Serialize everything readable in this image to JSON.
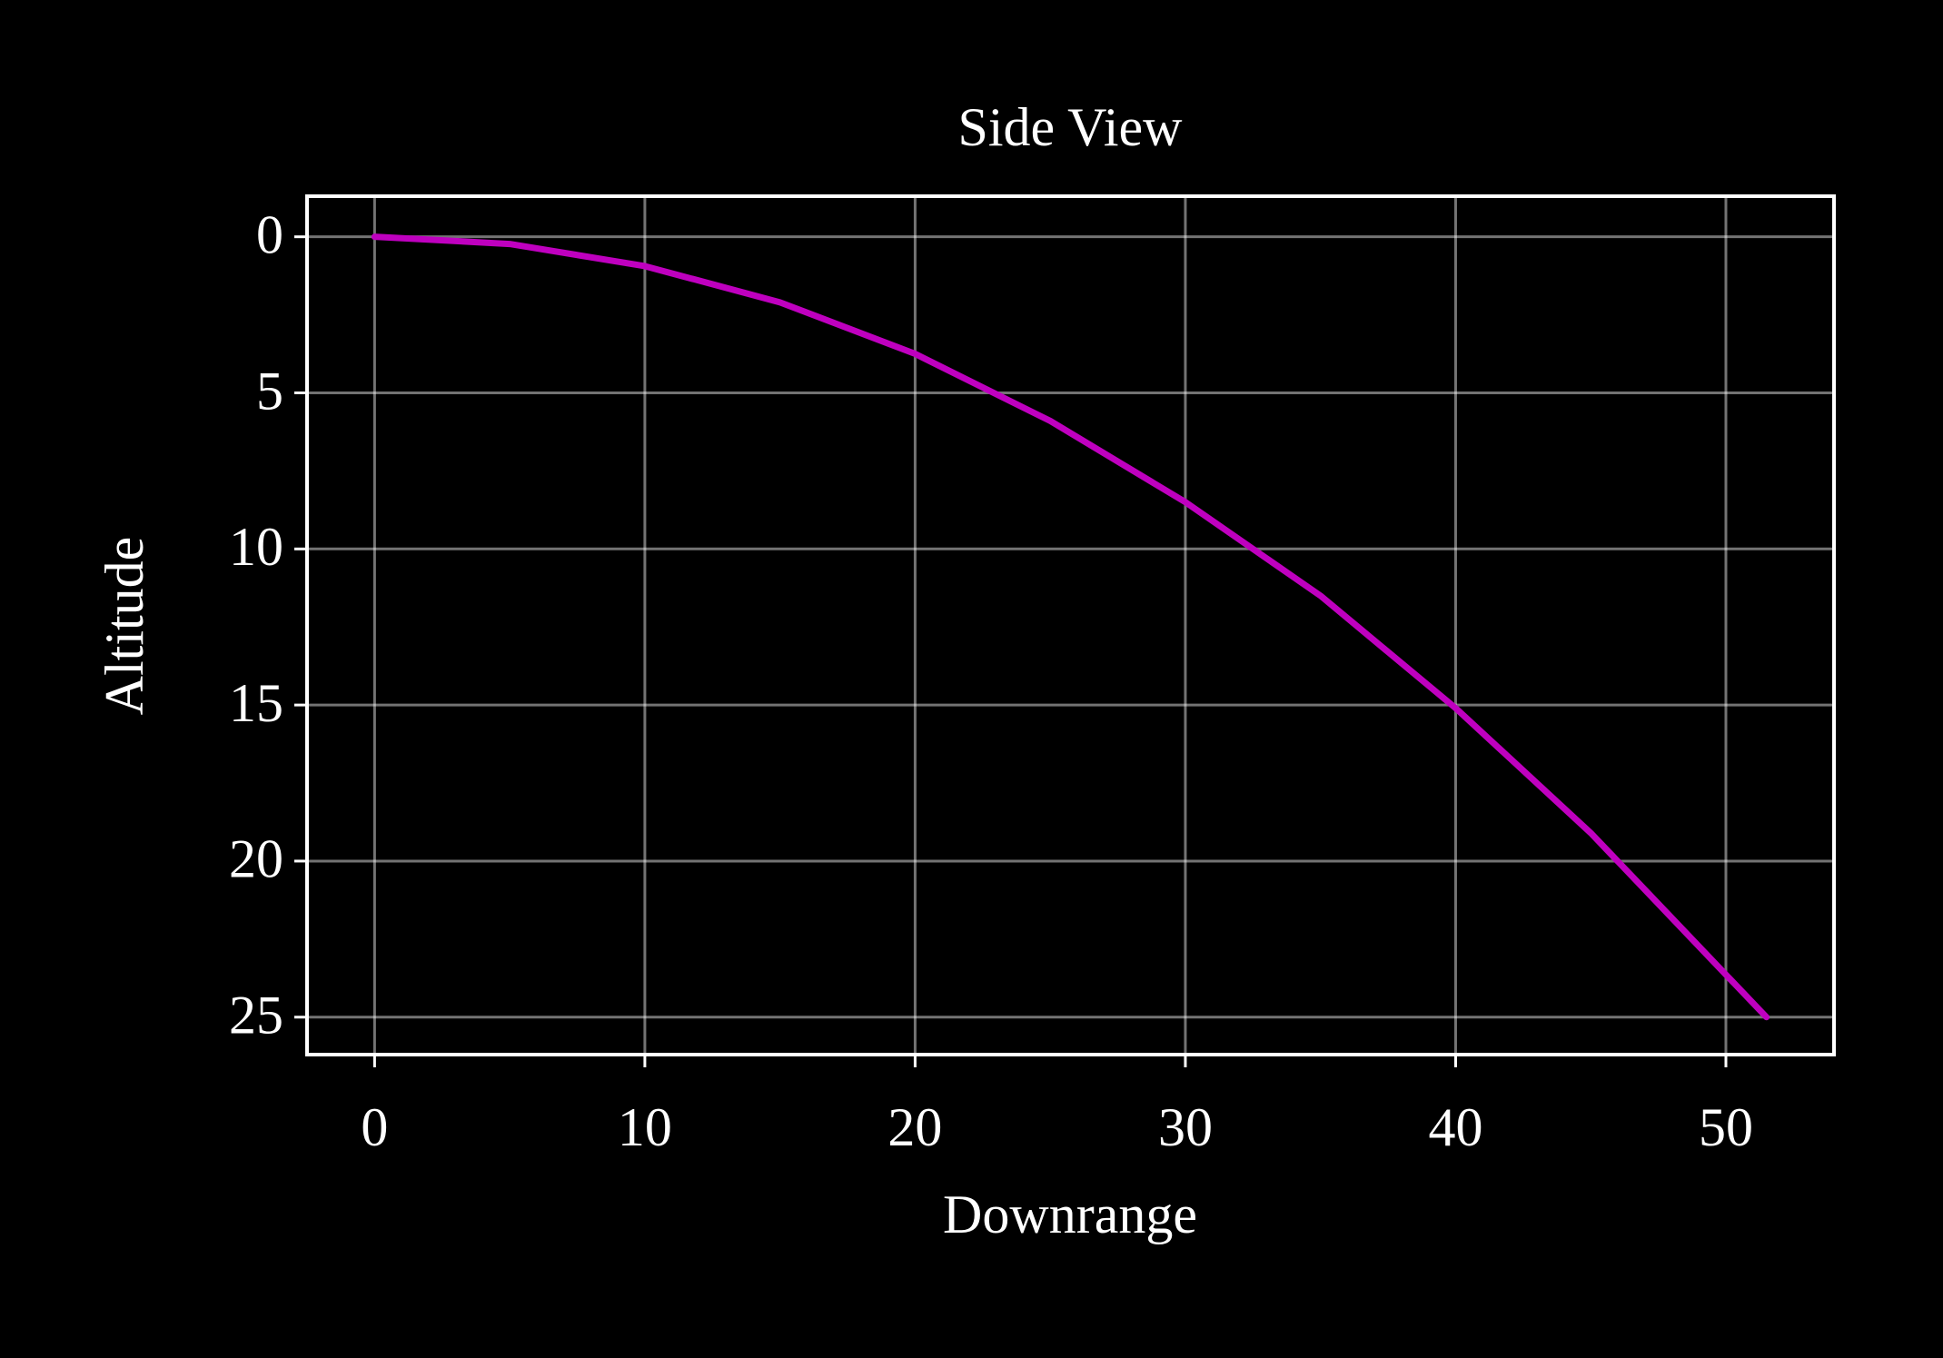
{
  "chart_data": {
    "type": "line",
    "title": "Side View",
    "x_label": "Downrange",
    "y_label": "Altitude",
    "x": [
      0,
      5,
      10,
      15,
      20,
      25,
      30,
      35,
      40,
      45,
      51.5
    ],
    "series": [
      {
        "name": "Altitude",
        "color": "#bf00bf",
        "values": [
          0,
          0.23,
          0.94,
          2.1,
          3.75,
          5.9,
          8.5,
          11.5,
          15.1,
          19.1,
          25
        ]
      }
    ],
    "xlim": [
      -2.5,
      54
    ],
    "ylim": [
      -1.3,
      26.2
    ],
    "y_inverted": true,
    "xticks": [
      0,
      10,
      20,
      30,
      40,
      50
    ],
    "yticks": [
      0,
      5,
      10,
      15,
      20,
      25
    ],
    "grid": true
  }
}
